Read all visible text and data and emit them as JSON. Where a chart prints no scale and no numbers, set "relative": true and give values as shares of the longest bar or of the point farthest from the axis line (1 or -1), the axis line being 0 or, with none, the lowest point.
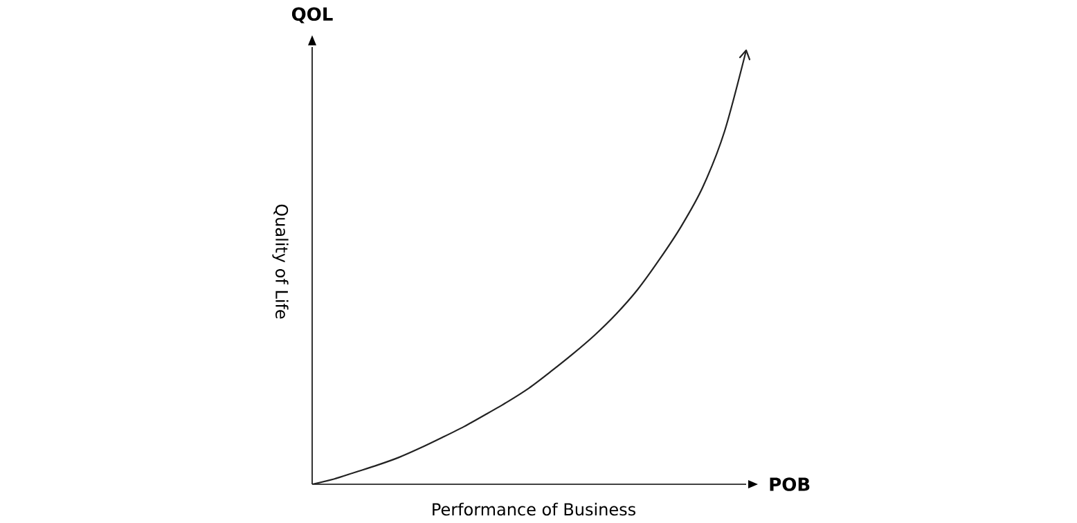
{
  "chart_data": {
    "type": "line",
    "relative": true,
    "xlabel": "Performance of Business",
    "ylabel": "Quality of Life",
    "annotations": [
      "QOL",
      "POB"
    ],
    "categories": [
      null,
      null,
      null,
      null,
      null,
      null,
      null,
      null,
      null,
      null,
      null,
      null,
      null,
      null,
      null,
      null,
      null,
      null,
      null,
      null,
      null
    ],
    "color": "#222222",
    "values": [
      0,
      0.012,
      0.028,
      0.044,
      0.062,
      0.084,
      0.108,
      0.133,
      0.161,
      0.19,
      0.222,
      0.26,
      0.3,
      0.343,
      0.392,
      0.449,
      0.518,
      0.594,
      0.685,
      0.813,
      1
    ]
  }
}
